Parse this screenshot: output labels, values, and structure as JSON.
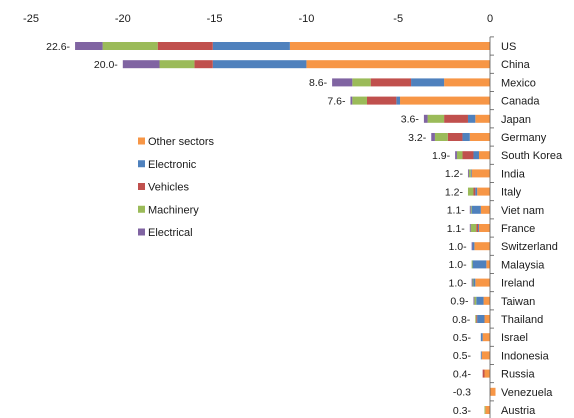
{
  "chart_data": {
    "type": "bar",
    "orientation": "horizontal",
    "stacked": true,
    "x_axis_position": "top",
    "xlim": [
      -25,
      0
    ],
    "x_ticks": [
      -25,
      -20,
      -15,
      -10,
      -5,
      0
    ],
    "x_tick_labels": [
      "-25",
      "-20",
      "-15",
      "-10",
      "-5",
      "0"
    ],
    "grid": false,
    "legend_position": "center-left",
    "categories": [
      "US",
      "China",
      "Mexico",
      "Canada",
      "Japan",
      "Germany",
      "South Korea",
      "India",
      "Italy",
      "Viet nam",
      "France",
      "Switzerland",
      "Malaysia",
      "Ireland",
      "Taiwan",
      "Thailand",
      "Israel",
      "Indonesia",
      "Russia",
      "Venezuela",
      "Austria"
    ],
    "total_labels": [
      "22.6-",
      "20.0-",
      "8.6-",
      "7.6-",
      "3.6-",
      "3.2-",
      "1.9-",
      "1.2-",
      "1.2-",
      "1.1-",
      "1.1-",
      "1.0-",
      "1.0-",
      "1.0-",
      "0.9-",
      "0.8-",
      "0.5-",
      "0.5-",
      "0.4-",
      "-0.3",
      "0.3-"
    ],
    "series": [
      {
        "name": "Other sectors",
        "color": "#F79646",
        "values": [
          -10.9,
          -10.0,
          -2.5,
          -4.9,
          -0.8,
          -1.1,
          -0.6,
          -1.0,
          -0.7,
          -0.5,
          -0.6,
          -0.85,
          -0.2,
          -0.8,
          -0.35,
          -0.3,
          -0.4,
          -0.45,
          -0.3,
          0.3,
          -0.25
        ]
      },
      {
        "name": "Electronic",
        "color": "#4F81BD",
        "values": [
          -4.2,
          -5.1,
          -1.8,
          -0.2,
          -0.4,
          -0.4,
          -0.3,
          -0.05,
          -0.1,
          -0.5,
          -0.05,
          -0.1,
          -0.75,
          -0.1,
          -0.4,
          -0.4,
          -0.1,
          -0.05,
          0,
          0,
          0
        ]
      },
      {
        "name": "Vehicles",
        "color": "#C0504D",
        "values": [
          -3.0,
          -1.0,
          -2.2,
          -1.6,
          -1.3,
          -0.8,
          -0.6,
          0,
          -0.1,
          0,
          -0.1,
          0,
          0,
          0,
          0,
          -0.05,
          0,
          0,
          -0.1,
          0,
          0
        ]
      },
      {
        "name": "Machinery",
        "color": "#9BBB59",
        "values": [
          -3.0,
          -1.9,
          -1.0,
          -0.8,
          -0.9,
          -0.7,
          -0.3,
          -0.1,
          -0.3,
          -0.05,
          -0.3,
          0,
          -0.05,
          -0.05,
          -0.1,
          -0.05,
          0,
          0,
          0,
          0,
          -0.05
        ]
      },
      {
        "name": "Electrical",
        "color": "#8064A2",
        "values": [
          -1.5,
          -2.0,
          -1.1,
          -0.1,
          -0.2,
          -0.2,
          -0.1,
          -0.05,
          0,
          -0.05,
          -0.05,
          -0.05,
          0,
          -0.05,
          -0.05,
          0,
          0,
          0,
          0,
          0,
          0
        ]
      }
    ]
  }
}
